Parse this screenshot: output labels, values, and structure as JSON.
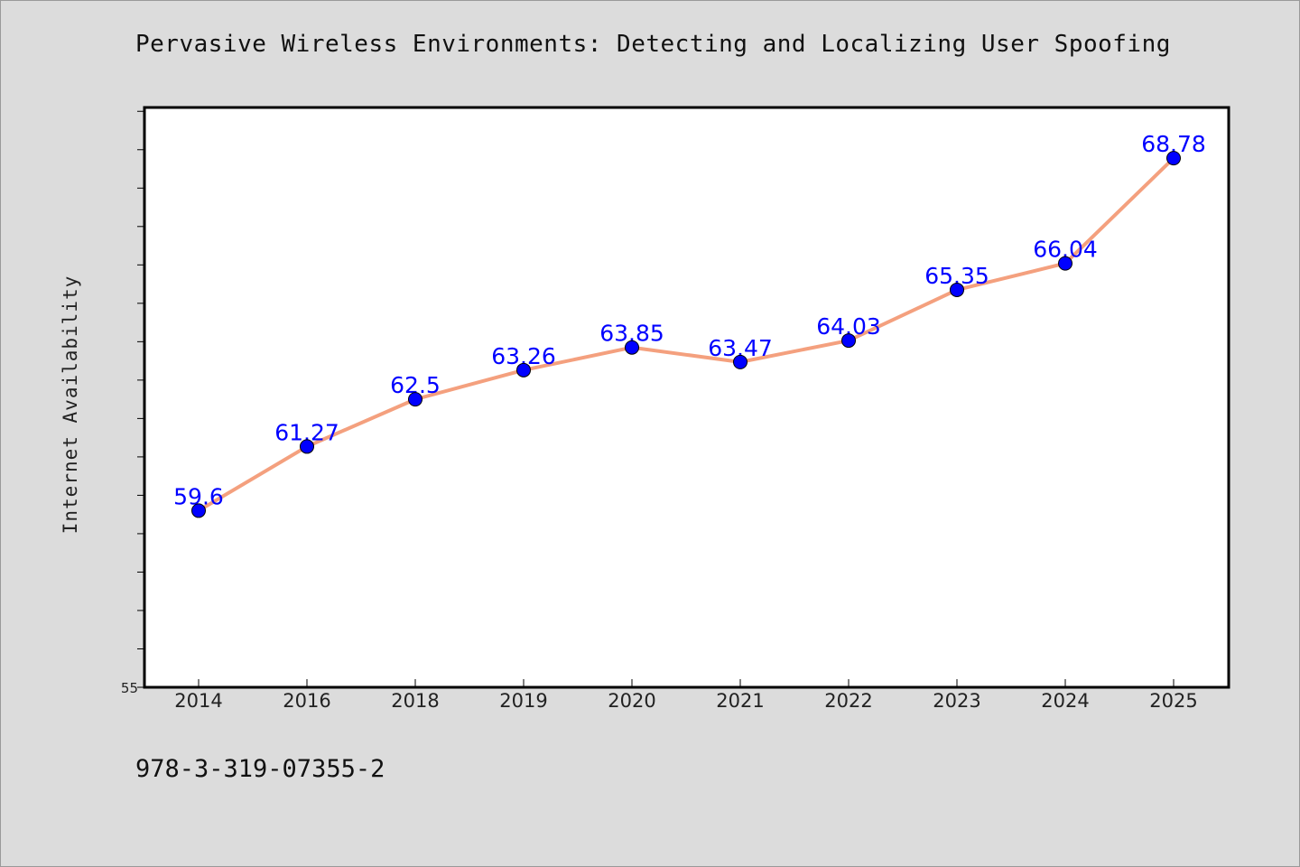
{
  "title": "Pervasive Wireless Environments: Detecting and Localizing User Spoofing",
  "footer": "978-3-319-07355-2",
  "colors": {
    "background": "#dcdcdc",
    "plot_background": "#ffffff",
    "line": "#f4a07e",
    "marker": "#0000ff",
    "data_label": "#0000ff"
  },
  "chart_data": {
    "type": "line",
    "title": "Pervasive Wireless Environments: Detecting and Localizing User Spoofing",
    "xlabel": "",
    "ylabel": "Internet Availability",
    "categories": [
      "2014",
      "2016",
      "2018",
      "2019",
      "2020",
      "2021",
      "2022",
      "2023",
      "2024",
      "2025"
    ],
    "values": [
      59.6,
      61.27,
      62.5,
      63.26,
      63.85,
      63.47,
      64.03,
      65.35,
      66.04,
      68.78
    ],
    "data_labels": [
      "59.6",
      "61.27",
      "62.5",
      "63.26",
      "63.85",
      "63.47",
      "64.03",
      "65.35",
      "66.04",
      "68.78"
    ],
    "ylim": [
      55,
      70.1
    ],
    "yticks": [
      55,
      56,
      57,
      58,
      59,
      60,
      61,
      62,
      63,
      64,
      65,
      66,
      67,
      68,
      69,
      70
    ],
    "ytick_labels_shown": [
      "55"
    ],
    "grid": false,
    "legend": "none"
  }
}
